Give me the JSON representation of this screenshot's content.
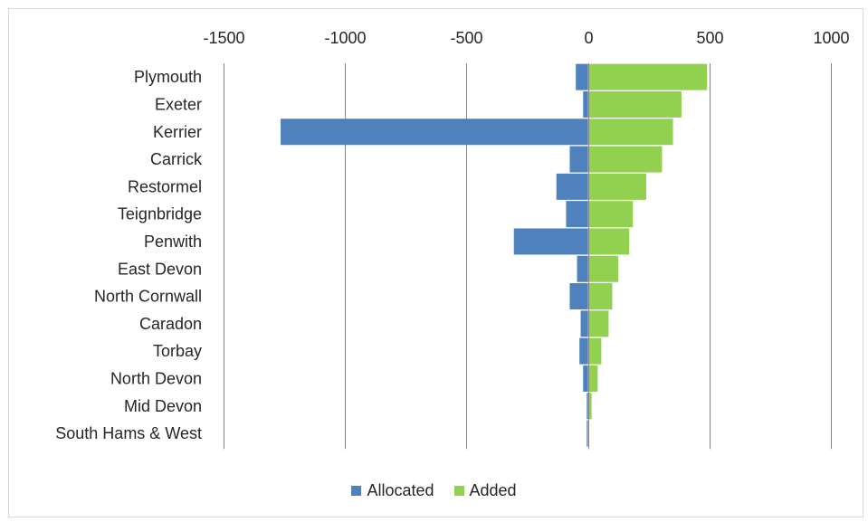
{
  "chart_data": {
    "type": "bar",
    "orientation": "horizontal",
    "stacked": true,
    "categories": [
      "Plymouth",
      "Exeter",
      "Kerrier",
      "Carrick",
      "Restormel",
      "Teignbridge",
      "Penwith",
      "East Devon",
      "North Cornwall",
      "Caradon",
      "Torbay",
      "North Devon",
      "Mid Devon",
      "South Hams & West"
    ],
    "series": [
      {
        "name": "Allocated",
        "color": "#4F81BD",
        "values": [
          -50,
          -20,
          -1265,
          -75,
          -130,
          -90,
          -305,
          -45,
          -75,
          -30,
          -35,
          -20,
          -5,
          -5
        ]
      },
      {
        "name": "Added",
        "color": "#92D050",
        "values": [
          490,
          385,
          350,
          305,
          240,
          185,
          170,
          125,
          100,
          85,
          55,
          40,
          15,
          0
        ]
      }
    ],
    "xlim": [
      -1500,
      1000
    ],
    "xticks": [
      -1500,
      -1000,
      -500,
      0,
      500,
      1000
    ],
    "xtick_labels": [
      "-1500",
      "-1000",
      "-500",
      "0",
      "500",
      "1000"
    ],
    "x_axis_position": "top",
    "grid": "vertical",
    "legend_position": "bottom",
    "title": "",
    "xlabel": "",
    "ylabel": ""
  }
}
